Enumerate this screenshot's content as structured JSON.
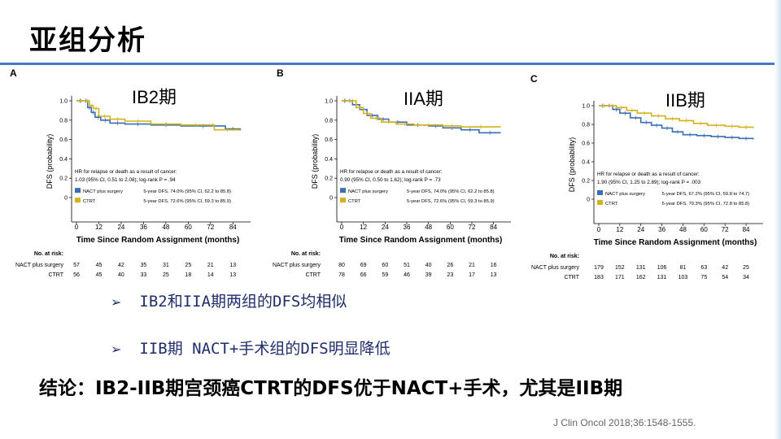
{
  "slide": {
    "title": "亚组分析",
    "bullets": [
      "IB2和IIA期两组的DFS均相似",
      "IIB期 NACT+手术组的DFS明显降低"
    ],
    "conclusion": "结论：IB2-IIB期宫颈癌CTRT的DFS优于NACT+手术，尤其是IIB期",
    "citation": "J Clin Oncol 2018;36:1548-1555."
  },
  "colors": {
    "nact": "#3a6eb5",
    "ctrt": "#d4b21c",
    "title_rule": "#4a79c4",
    "bullet_text": "#1f2d6b"
  },
  "chart_data": [
    {
      "type": "line",
      "panel": "A",
      "stage_label": "IB2期",
      "xlabel": "Time Since Random Assignment (months)",
      "ylabel": "DFS (probability)",
      "xticks": [
        0,
        12,
        24,
        36,
        48,
        60,
        72,
        84
      ],
      "yticks": [
        "0",
        "0.2",
        "0.4",
        "0.6",
        "0.8",
        "1.0"
      ],
      "xlim": [
        0,
        90
      ],
      "ylim": [
        0,
        1
      ],
      "hr_line1": "HR for relapse or death as a result of cancer:",
      "hr_line2": "1.03 (95% CI, 0.51 to 2.08); log-rank P = .94",
      "legend": [
        {
          "name": "NACT plus surgery",
          "desc": "5-year DFS, 74.0% (95% CI, 62.2 to 85.8)"
        },
        {
          "name": "CTRT",
          "desc": "5-year DFS, 72.6% (95% CI, 59.3 to 85.9)"
        }
      ],
      "series": [
        {
          "name": "NACT plus surgery",
          "points": [
            [
              0,
              1.0
            ],
            [
              4,
              1.0
            ],
            [
              6,
              0.93
            ],
            [
              8,
              0.88
            ],
            [
              10,
              0.83
            ],
            [
              13,
              0.8
            ],
            [
              18,
              0.77
            ],
            [
              26,
              0.76
            ],
            [
              40,
              0.75
            ],
            [
              56,
              0.74
            ],
            [
              80,
              0.71
            ],
            [
              88,
              0.7
            ]
          ]
        },
        {
          "name": "CTRT",
          "points": [
            [
              0,
              1.0
            ],
            [
              5,
              1.0
            ],
            [
              7,
              0.95
            ],
            [
              9,
              0.92
            ],
            [
              12,
              0.84
            ],
            [
              18,
              0.81
            ],
            [
              26,
              0.79
            ],
            [
              40,
              0.76
            ],
            [
              56,
              0.75
            ],
            [
              72,
              0.75
            ],
            [
              74,
              0.7
            ],
            [
              88,
              0.69
            ]
          ]
        }
      ],
      "at_risk_label": "No. at risk:",
      "at_risk": [
        {
          "name": "NACT plus surgery",
          "values": [
            57,
            45,
            42,
            35,
            31,
            25,
            21,
            13
          ]
        },
        {
          "name": "CTRT",
          "values": [
            56,
            45,
            40,
            33,
            25,
            18,
            14,
            13
          ]
        }
      ]
    },
    {
      "type": "line",
      "panel": "B",
      "stage_label": "IIA期",
      "xlabel": "Time Since Random Assignment (months)",
      "ylabel": "DFS (probability)",
      "xticks": [
        0,
        12,
        24,
        36,
        48,
        60,
        72,
        84
      ],
      "yticks": [
        "0",
        "0.2",
        "0.4",
        "0.6",
        "0.8",
        "1.0"
      ],
      "xlim": [
        0,
        90
      ],
      "ylim": [
        0,
        1
      ],
      "hr_line1": "HR for relapse or death as a result of cancer:",
      "hr_line2": "0.90 (95% CI, 0.50 to 1.62); log-rank P = .73",
      "legend": [
        {
          "name": "NACT plus surgery",
          "desc": "5-year DFS, 74.0% (95% CI, 62.2 to 85.8)"
        },
        {
          "name": "CTRT",
          "desc": "5-year DFS, 72.6% (95% CI, 59.3 to 85.9)"
        }
      ],
      "series": [
        {
          "name": "NACT plus surgery",
          "points": [
            [
              0,
              1.0
            ],
            [
              3,
              1.0
            ],
            [
              6,
              0.96
            ],
            [
              10,
              0.91
            ],
            [
              14,
              0.85
            ],
            [
              20,
              0.81
            ],
            [
              26,
              0.78
            ],
            [
              36,
              0.75
            ],
            [
              48,
              0.74
            ],
            [
              56,
              0.72
            ],
            [
              66,
              0.7
            ],
            [
              76,
              0.67
            ],
            [
              88,
              0.67
            ]
          ]
        },
        {
          "name": "CTRT",
          "points": [
            [
              0,
              1.0
            ],
            [
              4,
              1.0
            ],
            [
              8,
              0.93
            ],
            [
              12,
              0.87
            ],
            [
              16,
              0.82
            ],
            [
              22,
              0.78
            ],
            [
              30,
              0.76
            ],
            [
              40,
              0.75
            ],
            [
              56,
              0.74
            ],
            [
              66,
              0.73
            ],
            [
              88,
              0.73
            ]
          ]
        }
      ],
      "at_risk_label": "No. at risk:",
      "at_risk": [
        {
          "name": "NACT plus surgery",
          "values": [
            80,
            69,
            60,
            51,
            40,
            26,
            21,
            16
          ]
        },
        {
          "name": "CTRT",
          "values": [
            78,
            66,
            59,
            46,
            39,
            23,
            17,
            13
          ]
        }
      ]
    },
    {
      "type": "line",
      "panel": "C",
      "stage_label": "IIB期",
      "xlabel": "Time Since Random Assignment (months)",
      "ylabel": "DFS (probability)",
      "xticks": [
        0,
        12,
        24,
        36,
        48,
        60,
        72,
        84
      ],
      "yticks": [
        "0",
        "0.2",
        "0.4",
        "0.6",
        "0.8",
        "1.0"
      ],
      "xlim": [
        0,
        90
      ],
      "ylim": [
        0,
        1
      ],
      "hr_line1": "HR for relapse or death as a result of cancer:",
      "hr_line2": "1.90 (95% CI, 1.25 to 2.89); log-rank P = .003",
      "legend": [
        {
          "name": "NACT plus surgery",
          "desc": "5-year DFS, 67.2% (95% CI, 59.8 to 74.7)"
        },
        {
          "name": "CTRT",
          "desc": "5-year DFS, 79.3% (95% CI, 72.8 to 85.8)"
        }
      ],
      "series": [
        {
          "name": "NACT plus surgery",
          "points": [
            [
              0,
              1.0
            ],
            [
              4,
              1.0
            ],
            [
              8,
              0.96
            ],
            [
              12,
              0.92
            ],
            [
              18,
              0.87
            ],
            [
              24,
              0.82
            ],
            [
              30,
              0.79
            ],
            [
              36,
              0.76
            ],
            [
              42,
              0.72
            ],
            [
              48,
              0.69
            ],
            [
              56,
              0.68
            ],
            [
              64,
              0.67
            ],
            [
              72,
              0.66
            ],
            [
              80,
              0.65
            ],
            [
              88,
              0.64
            ]
          ]
        },
        {
          "name": "CTRT",
          "points": [
            [
              0,
              1.0
            ],
            [
              6,
              1.0
            ],
            [
              10,
              0.98
            ],
            [
              16,
              0.95
            ],
            [
              22,
              0.92
            ],
            [
              30,
              0.89
            ],
            [
              38,
              0.86
            ],
            [
              46,
              0.84
            ],
            [
              54,
              0.81
            ],
            [
              62,
              0.79
            ],
            [
              72,
              0.78
            ],
            [
              80,
              0.77
            ],
            [
              88,
              0.76
            ]
          ]
        }
      ],
      "at_risk_label": "No. at risk:",
      "at_risk": [
        {
          "name": "NACT plus surgery",
          "values": [
            179,
            152,
            131,
            106,
            81,
            63,
            42,
            25
          ]
        },
        {
          "name": "CTRT",
          "values": [
            183,
            171,
            162,
            131,
            103,
            75,
            54,
            34
          ]
        }
      ]
    }
  ]
}
